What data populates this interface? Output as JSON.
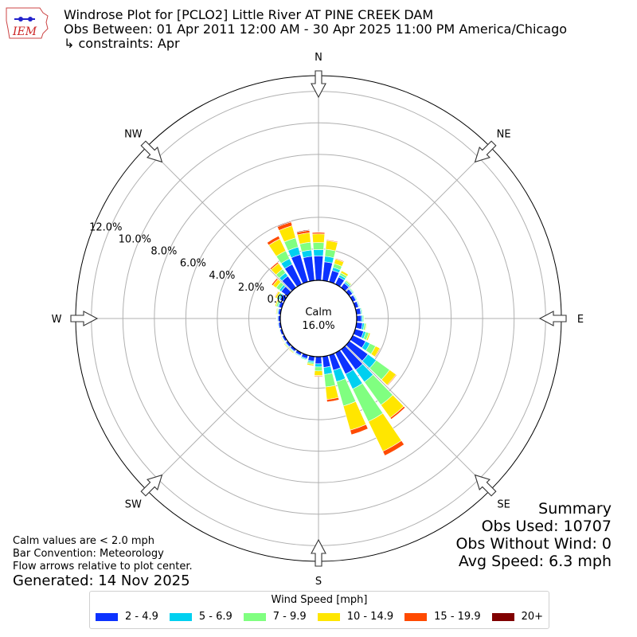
{
  "header": {
    "title": "Windrose Plot for [PCLO2] Little River  AT PINE CREEK DAM",
    "period": "Obs Between: 01 Apr 2011 12:00 AM - 30 Apr 2025 11:00 PM America/Chicago",
    "constraints": "↳ constraints: Apr",
    "logo_text": "IEM"
  },
  "summary": {
    "heading": "Summary",
    "obs_used": "Obs Used: 10707",
    "obs_without_wind": "Obs Without Wind: 0",
    "avg_speed": "Avg Speed: 6.3 mph"
  },
  "notes": {
    "calm_note": "Calm values are < 2.0 mph",
    "bar_convention": "Bar Convention: Meteorology",
    "flow_arrows": "Flow arrows relative to plot center.",
    "generated": "Generated: 14 Nov 2025"
  },
  "legend": {
    "title": "Wind Speed [mph]",
    "items": [
      {
        "label": "2 - 4.9",
        "color": "#0c32ff"
      },
      {
        "label": "5 - 6.9",
        "color": "#00d0f0"
      },
      {
        "label": "7 - 9.9",
        "color": "#80ff80"
      },
      {
        "label": "10 - 14.9",
        "color": "#ffe600"
      },
      {
        "label": "15 - 19.9",
        "color": "#ff4a00"
      },
      {
        "label": "20+",
        "color": "#800000"
      }
    ]
  },
  "chart_data": {
    "type": "windrose",
    "calm_label": "Calm",
    "calm_percent": "16.0%",
    "directions": [
      "N",
      "NE",
      "E",
      "SE",
      "S",
      "SW",
      "W",
      "NW"
    ],
    "radial_ticks": [
      0,
      2,
      4,
      6,
      8,
      10,
      12
    ],
    "radial_tick_labels": [
      "0.0%",
      "2.0%",
      "4.0%",
      "6.0%",
      "8.0%",
      "10.0%",
      "12.0%"
    ],
    "rmax": 13,
    "sector_width_deg": 10,
    "bins": [
      "2 - 4.9",
      "5 - 6.9",
      "7 - 9.9",
      "10 - 14.9",
      "15 - 19.9",
      "20+"
    ],
    "sectors": [
      {
        "dir": 0,
        "values": [
          1.55,
          0.4,
          0.45,
          0.55,
          0.1,
          0.02
        ]
      },
      {
        "dir": 10,
        "values": [
          1.2,
          0.35,
          0.45,
          0.55,
          0.05,
          0.0
        ]
      },
      {
        "dir": 20,
        "values": [
          0.75,
          0.2,
          0.25,
          0.3,
          0.05,
          0.0
        ]
      },
      {
        "dir": 30,
        "values": [
          0.5,
          0.15,
          0.15,
          0.15,
          0.02,
          0.0
        ]
      },
      {
        "dir": 40,
        "values": [
          0.35,
          0.1,
          0.1,
          0.05,
          0.0,
          0.0
        ]
      },
      {
        "dir": 50,
        "values": [
          0.25,
          0.06,
          0.06,
          0.03,
          0.0,
          0.0
        ]
      },
      {
        "dir": 60,
        "values": [
          0.22,
          0.05,
          0.05,
          0.02,
          0.0,
          0.0
        ]
      },
      {
        "dir": 70,
        "values": [
          0.22,
          0.05,
          0.05,
          0.02,
          0.0,
          0.0
        ]
      },
      {
        "dir": 80,
        "values": [
          0.28,
          0.06,
          0.05,
          0.02,
          0.0,
          0.0
        ]
      },
      {
        "dir": 90,
        "values": [
          0.3,
          0.08,
          0.07,
          0.03,
          0.0,
          0.0
        ]
      },
      {
        "dir": 100,
        "values": [
          0.38,
          0.12,
          0.1,
          0.05,
          0.0,
          0.0
        ]
      },
      {
        "dir": 110,
        "values": [
          0.55,
          0.15,
          0.2,
          0.1,
          0.02,
          0.0
        ]
      },
      {
        "dir": 120,
        "values": [
          0.9,
          0.3,
          0.4,
          0.3,
          0.05,
          0.0
        ]
      },
      {
        "dir": 130,
        "values": [
          1.45,
          0.65,
          1.05,
          0.5,
          0.05,
          0.0
        ]
      },
      {
        "dir": 140,
        "values": [
          1.6,
          0.95,
          1.8,
          1.0,
          0.12,
          0.0
        ]
      },
      {
        "dir": 150,
        "values": [
          1.5,
          1.05,
          2.3,
          2.1,
          0.3,
          0.0
        ]
      },
      {
        "dir": 160,
        "values": [
          1.0,
          0.75,
          1.6,
          1.6,
          0.3,
          0.0
        ]
      },
      {
        "dir": 170,
        "values": [
          0.7,
          0.45,
          0.8,
          0.8,
          0.15,
          0.0
        ]
      },
      {
        "dir": 180,
        "values": [
          0.45,
          0.2,
          0.25,
          0.3,
          0.05,
          0.0
        ]
      },
      {
        "dir": 190,
        "values": [
          0.3,
          0.1,
          0.1,
          0.1,
          0.02,
          0.0
        ]
      },
      {
        "dir": 200,
        "values": [
          0.22,
          0.07,
          0.05,
          0.03,
          0.0,
          0.0
        ]
      },
      {
        "dir": 210,
        "values": [
          0.18,
          0.05,
          0.05,
          0.02,
          0.0,
          0.0
        ]
      },
      {
        "dir": 220,
        "values": [
          0.15,
          0.05,
          0.05,
          0.05,
          0.0,
          0.0
        ]
      },
      {
        "dir": 230,
        "values": [
          0.15,
          0.05,
          0.05,
          0.05,
          0.0,
          0.0
        ]
      },
      {
        "dir": 240,
        "values": [
          0.14,
          0.04,
          0.04,
          0.04,
          0.0,
          0.0
        ]
      },
      {
        "dir": 250,
        "values": [
          0.13,
          0.04,
          0.03,
          0.03,
          0.0,
          0.0
        ]
      },
      {
        "dir": 260,
        "values": [
          0.13,
          0.04,
          0.04,
          0.03,
          0.0,
          0.0
        ]
      },
      {
        "dir": 270,
        "values": [
          0.14,
          0.04,
          0.04,
          0.03,
          0.0,
          0.0
        ]
      },
      {
        "dir": 280,
        "values": [
          0.15,
          0.05,
          0.05,
          0.05,
          0.0,
          0.0
        ]
      },
      {
        "dir": 290,
        "values": [
          0.2,
          0.07,
          0.1,
          0.08,
          0.02,
          0.0
        ]
      },
      {
        "dir": 300,
        "values": [
          0.3,
          0.1,
          0.12,
          0.12,
          0.04,
          0.0
        ]
      },
      {
        "dir": 310,
        "values": [
          0.5,
          0.15,
          0.25,
          0.25,
          0.1,
          0.0
        ]
      },
      {
        "dir": 320,
        "values": [
          0.9,
          0.25,
          0.3,
          0.45,
          0.1,
          0.02
        ]
      },
      {
        "dir": 330,
        "values": [
          1.4,
          0.4,
          0.55,
          0.85,
          0.2,
          0.03
        ]
      },
      {
        "dir": 340,
        "values": [
          1.8,
          0.5,
          0.6,
          0.8,
          0.25,
          0.05
        ]
      },
      {
        "dir": 350,
        "values": [
          1.55,
          0.4,
          0.5,
          0.6,
          0.15,
          0.05
        ]
      }
    ]
  }
}
